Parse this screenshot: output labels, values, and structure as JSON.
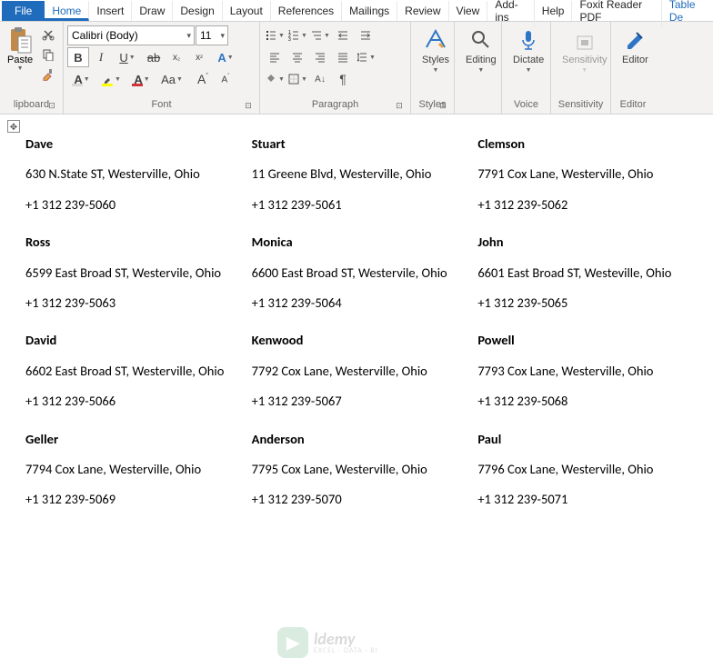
{
  "tabs": {
    "file": "File",
    "home": "Home",
    "insert": "Insert",
    "draw": "Draw",
    "design": "Design",
    "layout": "Layout",
    "references": "References",
    "mailings": "Mailings",
    "review": "Review",
    "view": "View",
    "addins": "Add-ins",
    "help": "Help",
    "foxit": "Foxit Reader PDF",
    "tablede": "Table De"
  },
  "ribbon": {
    "clipboard": {
      "paste": "Paste",
      "label": "lipboard"
    },
    "font": {
      "name": "Calibri (Body)",
      "size": "11",
      "label": "Font",
      "bold": "B",
      "italic": "I",
      "underline": "U",
      "aA": "Aa",
      "clear": "A"
    },
    "paragraph": {
      "label": "Paragraph",
      "pilcrow": "¶"
    },
    "styles": {
      "label": "Styles",
      "btn": "Styles"
    },
    "editing": {
      "label": "Editing",
      "btn": "Editing"
    },
    "voice": {
      "label": "Voice",
      "dictate": "Dictate"
    },
    "sensitivity": {
      "label": "Sensitivity",
      "btn": "Sensitivity"
    },
    "editor": {
      "label": "Editor",
      "btn": "Editor"
    }
  },
  "labels": [
    {
      "name": "Dave",
      "addr": "630 N.State ST, Westerville, Ohio",
      "phone": "+1 312 239-5060"
    },
    {
      "name": "Stuart",
      "addr": "11 Greene Blvd, Westerville, Ohio",
      "phone": "+1 312 239-5061"
    },
    {
      "name": "Clemson",
      "addr": "7791 Cox Lane, Westerville, Ohio",
      "phone": "+1 312 239-5062"
    },
    {
      "name": "Ross",
      "addr": "6599 East Broad ST, Westervile, Ohio",
      "phone": "+1 312 239-5063"
    },
    {
      "name": "Monica",
      "addr": "6600 East Broad ST, Westervile, Ohio",
      "phone": "+1 312 239-5064"
    },
    {
      "name": "John",
      "addr": "6601 East Broad ST, Westeville, Ohio",
      "phone": "+1 312 239-5065"
    },
    {
      "name": "David",
      "addr": "6602 East Broad ST, Westerville, Ohio",
      "phone": "+1 312 239-5066"
    },
    {
      "name": "Kenwood",
      "addr": "7792 Cox Lane, Westerville, Ohio",
      "phone": "+1 312 239-5067"
    },
    {
      "name": "Powell",
      "addr": "7793 Cox Lane, Westerville, Ohio",
      "phone": "+1 312 239-5068"
    },
    {
      "name": "Geller",
      "addr": "7794 Cox Lane, Westerville, Ohio",
      "phone": "+1 312 239-5069"
    },
    {
      "name": "Anderson",
      "addr": "7795 Cox Lane, Westerville, Ohio",
      "phone": "+1 312 239-5070"
    },
    {
      "name": "Paul",
      "addr": "7796 Cox Lane, Westerville, Ohio",
      "phone": "+1 312 239-5071"
    }
  ],
  "colors": {
    "accent": "#1f6cbd",
    "highlight": "#ffff00",
    "fontcolor": "#d13438",
    "shading": "#d9d9d9"
  },
  "watermark": {
    "main": "ldemy",
    "sub": "EXCEL · DATA · BI"
  }
}
